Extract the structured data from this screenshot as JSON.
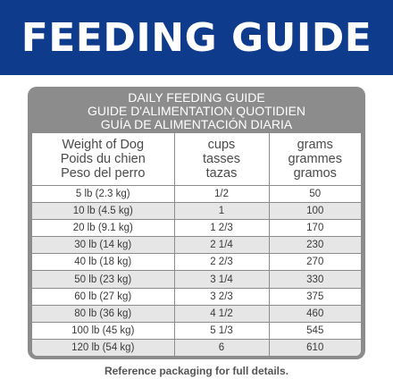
{
  "banner": {
    "title": "FEEDING GUIDE"
  },
  "card": {
    "titles": [
      "DAILY FEEDING GUIDE",
      "GUIDE D'ALIMENTATION QUOTIDIEN",
      "GUÍA DE ALIMENTACIÓN DIARIA"
    ],
    "headers": {
      "weight": [
        "Weight of Dog",
        "Poids du chien",
        "Peso del perro"
      ],
      "cups": [
        "cups",
        "tasses",
        "tazas"
      ],
      "grams": [
        "grams",
        "grammes",
        "gramos"
      ]
    },
    "rows": [
      {
        "weight": "5 lb (2.3 kg)",
        "cups": "1/2",
        "grams": "50"
      },
      {
        "weight": "10 lb (4.5 kg)",
        "cups": "1",
        "grams": "100"
      },
      {
        "weight": "20 lb (9.1 kg)",
        "cups": "1 2/3",
        "grams": "170"
      },
      {
        "weight": "30 lb (14 kg)",
        "cups": "2 1/4",
        "grams": "230"
      },
      {
        "weight": "40 lb (18 kg)",
        "cups": "2 2/3",
        "grams": "270"
      },
      {
        "weight": "50 lb (23 kg)",
        "cups": "3 1/4",
        "grams": "330"
      },
      {
        "weight": "60 lb (27 kg)",
        "cups": "3 2/3",
        "grams": "375"
      },
      {
        "weight": "80 lb (36 kg)",
        "cups": "4 1/2",
        "grams": "460"
      },
      {
        "weight": "100 lb (45 kg)",
        "cups": "5 1/3",
        "grams": "545"
      },
      {
        "weight": "120 lb (54 kg)",
        "cups": "6",
        "grams": "610"
      }
    ]
  },
  "footer": {
    "note": "Reference packaging for full details."
  },
  "colors": {
    "banner": "#0f3b8c",
    "card": "#8c8c8c",
    "stripe": "#e6e6e6"
  }
}
